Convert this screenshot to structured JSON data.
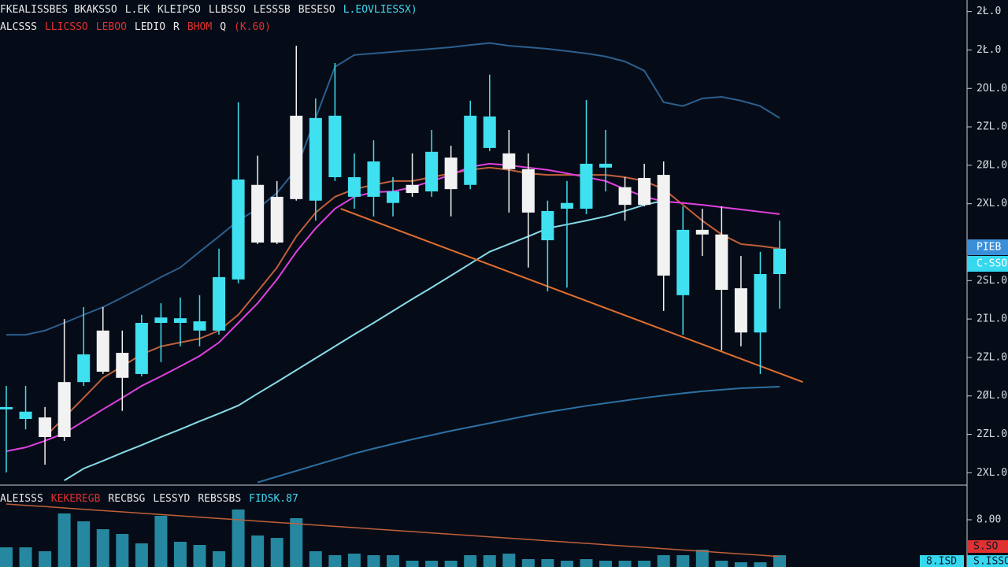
{
  "chart_data": {
    "type": "candlestick",
    "legend_lines": [
      [
        {
          "text": "FKEALISSBES BKAKSSO",
          "color": "#e8e8e8"
        },
        {
          "text": "L.EK",
          "color": "#e8e8e8"
        },
        {
          "text": "KLEIPSO",
          "color": "#e8e8e8"
        },
        {
          "text": "LLBSSO",
          "color": "#e8e8e8"
        },
        {
          "text": "LESSSB",
          "color": "#e8e8e8"
        },
        {
          "text": "BESESO",
          "color": "#e8e8e8"
        },
        {
          "text": "L.EOVLIESSX)",
          "color": "#40d8f0"
        }
      ],
      [
        {
          "text": "ALCSSS",
          "color": "#e8e8e8"
        },
        {
          "text": "LLICSSO",
          "color": "#e03030"
        },
        {
          "text": "LEBOO",
          "color": "#e03030"
        },
        {
          "text": "LEDIO",
          "color": "#e8e8e8"
        },
        {
          "text": "R",
          "color": "#e8e8e8"
        },
        {
          "text": "BHOM",
          "color": "#e03030"
        },
        {
          "text": "Q",
          "color": "#e8e8e8"
        },
        {
          "text": "(K.60)",
          "color": "#e03030"
        }
      ]
    ],
    "volume_legend": [
      {
        "text": "ALEISSS",
        "color": "#e8e8e8"
      },
      {
        "text": "KEKEREGB",
        "color": "#e03030"
      },
      {
        "text": "RECBSG",
        "color": "#e8e8e8"
      },
      {
        "text": "LESSYD",
        "color": "#e8e8e8"
      },
      {
        "text": "REBSSBS",
        "color": "#e8e8e8"
      },
      {
        "text": "FIDSK.87",
        "color": "#40d8f0"
      }
    ],
    "up_color": "#3fe0f0",
    "down_color": "#f2f2f2",
    "open": [
      19.5,
      17.0,
      17.4,
      26.6,
      26.6,
      40.0,
      34.2,
      28.7,
      42.0,
      42.0,
      40.0,
      40.0,
      53.3,
      77.9,
      74.8,
      95.9,
      73.8,
      79.9,
      74.8,
      74.8,
      73.2,
      77.9,
      76.2,
      85.0,
      77.9,
      87.5,
      86.1,
      82.0,
      63.5,
      71.7,
      71.7,
      82.4,
      77.3,
      79.7,
      80.5,
      49.2,
      66.2,
      65.0,
      51.0,
      39.5,
      54.7
    ],
    "high": [
      25.6,
      25.6,
      20.1,
      43.0,
      46.1,
      46.1,
      40.0,
      44.1,
      47.1,
      48.6,
      49.2,
      61.3,
      99.4,
      85.5,
      78.9,
      114.1,
      100.4,
      109.6,
      86.1,
      89.5,
      79.9,
      86.1,
      92.2,
      88.1,
      99.8,
      106.6,
      92.2,
      86.1,
      73.8,
      78.9,
      100.0,
      92.2,
      79.9,
      83.4,
      84.0,
      72.3,
      71.7,
      72.3,
      59.4,
      60.5,
      68.6
    ],
    "low": [
      3.1,
      14.3,
      5.1,
      11.3,
      25.6,
      28.7,
      19.1,
      28.1,
      31.8,
      35.9,
      35.9,
      38.9,
      52.3,
      62.5,
      62.5,
      73.8,
      68.6,
      78.9,
      71.7,
      69.7,
      69.7,
      74.8,
      74.8,
      69.7,
      76.8,
      86.7,
      70.7,
      56.4,
      50.2,
      51.2,
      70.3,
      76.2,
      68.6,
      72.3,
      45.1,
      38.9,
      59.4,
      34.8,
      35.9,
      28.7,
      45.7
    ],
    "close": [
      20.1,
      18.9,
      12.3,
      12.3,
      33.8,
      29.3,
      27.7,
      42.0,
      43.4,
      43.2,
      42.4,
      53.9,
      79.3,
      62.9,
      62.9,
      74.2,
      95.3,
      95.9,
      79.9,
      84.0,
      76.2,
      75.8,
      86.5,
      76.8,
      95.9,
      95.7,
      82.0,
      70.7,
      71.1,
      73.2,
      83.4,
      83.4,
      72.7,
      72.7,
      54.3,
      66.2,
      65.0,
      50.6,
      39.5,
      54.7,
      61.3
    ],
    "series": [
      {
        "color": "#2b5f8f",
        "values": [
          38.9,
          38.9,
          40.0,
          42.0,
          44.1,
          46.1,
          48.6,
          51.2,
          53.9,
          56.4,
          60.5,
          64.5,
          68.6,
          71.7,
          75.8,
          82.0,
          95.3,
          108.6,
          111.7,
          112.1,
          112.5,
          112.9,
          113.3,
          113.7,
          114.3,
          114.8,
          114.1,
          113.7,
          113.3,
          112.7,
          112.1,
          111.3,
          110.0,
          107.6,
          99.4,
          98.4,
          100.4,
          100.8,
          99.8,
          98.4,
          95.3
        ]
      },
      {
        "color": "#c0603a",
        "values": [
          null,
          null,
          12.3,
          17.4,
          22.5,
          27.7,
          30.7,
          33.8,
          35.9,
          36.9,
          37.9,
          40.0,
          44.1,
          50.2,
          56.4,
          64.5,
          70.7,
          74.8,
          76.8,
          77.9,
          78.9,
          78.9,
          79.9,
          80.9,
          81.8,
          82.4,
          81.8,
          80.9,
          80.5,
          80.5,
          80.5,
          80.5,
          79.9,
          78.9,
          76.8,
          72.7,
          68.6,
          65.0,
          62.5,
          62.0,
          61.3
        ]
      },
      {
        "color": "#e040e0",
        "values": [
          8.6,
          9.6,
          11.3,
          13.3,
          16.4,
          19.5,
          22.5,
          25.6,
          28.1,
          30.7,
          33.4,
          36.9,
          42.0,
          47.1,
          53.3,
          60.5,
          66.6,
          71.7,
          74.8,
          76.0,
          76.2,
          77.3,
          78.9,
          80.5,
          82.6,
          83.4,
          83.0,
          82.4,
          81.8,
          80.9,
          79.9,
          78.9,
          76.8,
          74.8,
          73.6,
          73.2,
          72.7,
          72.1,
          71.5,
          70.9,
          70.3
        ]
      },
      {
        "color": "#86dbe8",
        "values": [
          null,
          null,
          null,
          1.0,
          4.1,
          6.1,
          8.2,
          10.2,
          12.3,
          14.3,
          16.4,
          18.4,
          20.5,
          23.6,
          26.6,
          29.7,
          32.8,
          35.9,
          39.0,
          42.0,
          45.1,
          48.2,
          51.2,
          54.3,
          57.4,
          60.5,
          62.5,
          64.5,
          66.6,
          67.6,
          68.6,
          69.7,
          71.1,
          72.7,
          73.8,
          null,
          null,
          null,
          null,
          null,
          null
        ]
      },
      {
        "color": "#2c70a4",
        "values": [
          null,
          null,
          null,
          null,
          null,
          null,
          null,
          null,
          null,
          null,
          null,
          null,
          null,
          0.5,
          2,
          3.5,
          5,
          6.5,
          8,
          9.3,
          10.5,
          11.7,
          12.8,
          13.9,
          14.9,
          15.9,
          16.9,
          17.9,
          18.8,
          19.6,
          20.4,
          21.1,
          21.8,
          22.5,
          23.1,
          23.7,
          24.2,
          24.6,
          25.0,
          25.2,
          25.4
        ]
      }
    ],
    "trendline": {
      "color": "#e07030",
      "x": [
        17.3,
        41.2
      ],
      "y": [
        71.7,
        26.6
      ]
    },
    "ylim": [
      0,
      126
    ],
    "yticks": [
      {
        "value": 123,
        "label": "2Ł.0"
      },
      {
        "value": 113,
        "label": "2Ł.0"
      },
      {
        "value": 103,
        "label": "2OL.0"
      },
      {
        "value": 93,
        "label": "2ZL.0"
      },
      {
        "value": 83,
        "label": "2ØL.0"
      },
      {
        "value": 73,
        "label": "2XL.0"
      },
      {
        "value": 53,
        "label": "2SL.0"
      },
      {
        "value": 43,
        "label": "2IL.0"
      },
      {
        "value": 33,
        "label": "2ZL.0"
      },
      {
        "value": 23,
        "label": "2ØL.0"
      },
      {
        "value": 13,
        "label": "2ZL.0"
      },
      {
        "value": 3,
        "label": "2XL.0"
      }
    ],
    "price_badges": [
      "PIEB",
      "C-SSO"
    ],
    "volume": {
      "color": "#2c9fb8",
      "ylim": [
        0,
        100
      ],
      "yticks": [
        {
          "value": 60,
          "label": "8.00"
        }
      ],
      "values": [
        25,
        25,
        20,
        68,
        58,
        48,
        42,
        30,
        65,
        32,
        28,
        20,
        73,
        40,
        37,
        62,
        20,
        15,
        17,
        15,
        15,
        8,
        8,
        8,
        15,
        15,
        17,
        10,
        10,
        8,
        10,
        8,
        8,
        8,
        15,
        15,
        22,
        8,
        6,
        6,
        15
      ],
      "ma": {
        "color": "#c0603a",
        "values": [
          80,
          78.3,
          76.7,
          75,
          73.3,
          71.6,
          70,
          68.3,
          66.6,
          65,
          63.3,
          61.6,
          60,
          58.3,
          56.6,
          55,
          53.3,
          51.6,
          50,
          48.3,
          46.6,
          45,
          43.3,
          41.6,
          40,
          38.3,
          36.6,
          35,
          33.3,
          31.6,
          30,
          28.3,
          26.6,
          25,
          23.3,
          21.6,
          20,
          18.3,
          16.6,
          15,
          13.3
        ]
      },
      "badges": [
        "S.SO",
        "8.ISD",
        "S.ISSO"
      ]
    }
  }
}
